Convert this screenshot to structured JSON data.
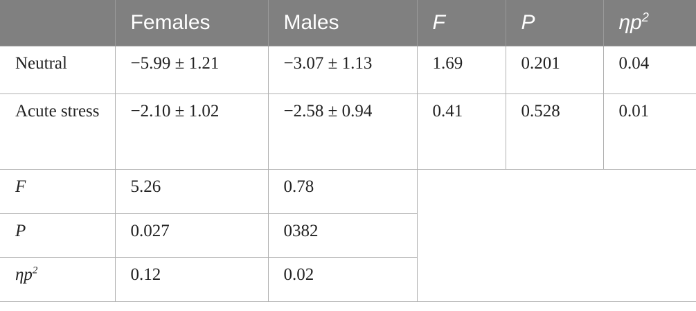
{
  "table": {
    "headers": [
      "",
      "Females",
      "Males",
      "F",
      "P",
      "ηp",
      "2"
    ],
    "rows": [
      {
        "label": "Neutral",
        "females": "−5.99 ± 1.21",
        "males": "−3.07 ± 1.13",
        "f": "1.69",
        "p": "0.201",
        "eta": "0.04"
      },
      {
        "label": "Acute stress",
        "females": "−2.10 ± 1.02",
        "males": "−2.58 ± 0.94",
        "f": "0.41",
        "p": "0.528",
        "eta": "0.01"
      }
    ],
    "stats": [
      {
        "label": "F",
        "females": "5.26",
        "males": "0.78"
      },
      {
        "label": "P",
        "females": "0.027",
        "males": "0382"
      },
      {
        "label": "ηp",
        "label_sup": "2",
        "females": "0.12",
        "males": "0.02"
      }
    ]
  }
}
